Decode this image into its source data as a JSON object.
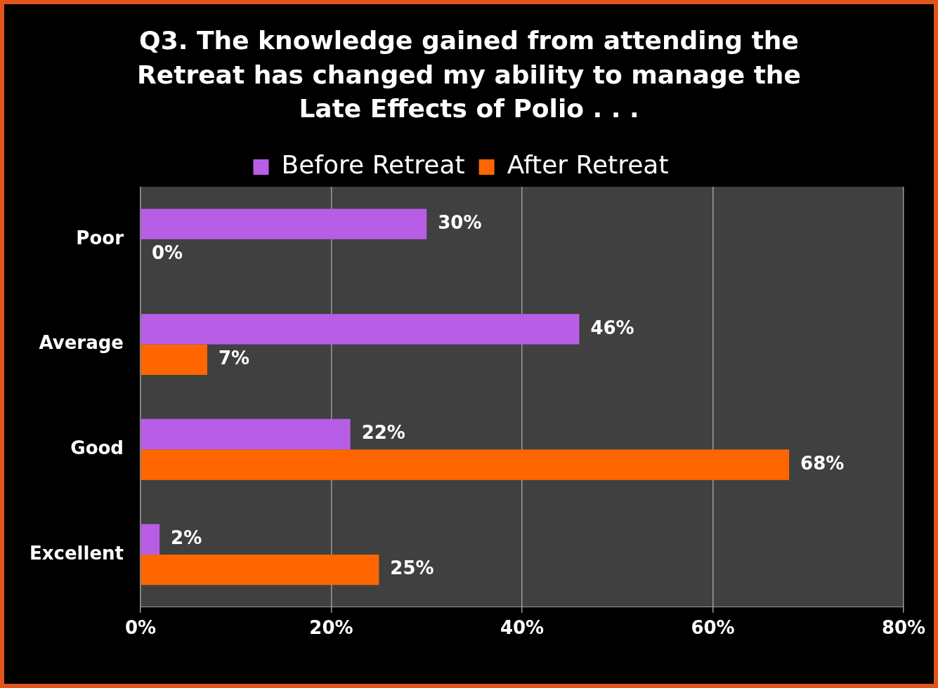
{
  "chart_data": {
    "type": "bar",
    "orientation": "horizontal",
    "title": "Q3. The knowledge gained from attending the Retreat has changed my ability to manage the Late Effects of Polio . . .",
    "categories": [
      "Poor",
      "Average",
      "Good",
      "Excellent"
    ],
    "series": [
      {
        "name": "Before Retreat",
        "color": "#b85ee6",
        "values": [
          30,
          46,
          22,
          2
        ],
        "value_labels": [
          "30%",
          "46%",
          "22%",
          "2%"
        ]
      },
      {
        "name": "After Retreat",
        "color": "#ff6600",
        "values": [
          0,
          7,
          68,
          25
        ],
        "value_labels": [
          "0%",
          "7%",
          "68%",
          "25%"
        ]
      }
    ],
    "xlim": [
      0,
      80
    ],
    "xticks": [
      {
        "value": 0,
        "label": "0%"
      },
      {
        "value": 20,
        "label": "20%"
      },
      {
        "value": 40,
        "label": "40%"
      },
      {
        "value": 60,
        "label": "60%"
      },
      {
        "value": 80,
        "label": "80%"
      }
    ],
    "grid": "x",
    "legend": "top"
  }
}
